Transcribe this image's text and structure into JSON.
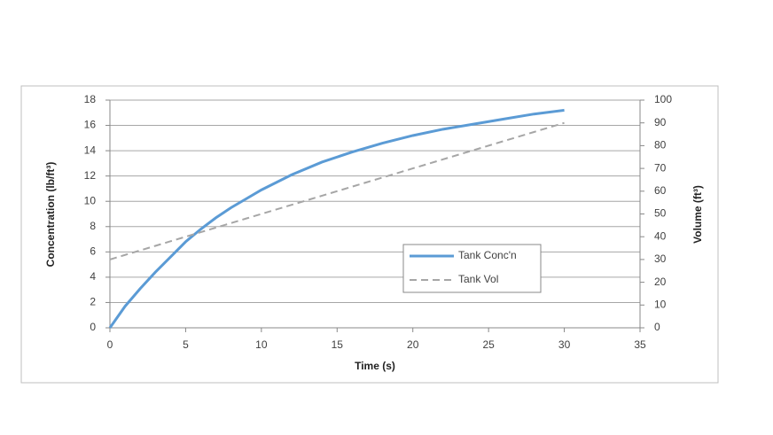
{
  "chart_data": {
    "type": "line",
    "x": [
      0,
      1,
      2,
      3,
      4,
      5,
      6,
      7,
      8,
      9,
      10,
      12,
      14,
      16,
      18,
      20,
      22,
      24,
      26,
      28,
      30
    ],
    "series": [
      {
        "name": "Tank Conc'n",
        "color": "#5b9bd5",
        "dash": false,
        "axis": "y",
        "values": [
          0,
          1.7,
          3.1,
          4.4,
          5.6,
          6.8,
          7.8,
          8.7,
          9.5,
          10.2,
          10.9,
          12.1,
          13.1,
          13.9,
          14.6,
          15.2,
          15.7,
          16.1,
          16.5,
          16.9,
          17.2
        ]
      },
      {
        "name": "Tank Vol",
        "color": "#a6a6a6",
        "dash": true,
        "axis": "y2",
        "values": [
          30,
          32,
          34,
          36,
          38,
          40,
          42,
          44,
          46,
          48,
          50,
          54,
          58,
          62,
          66,
          70,
          74,
          78,
          82,
          86,
          90
        ]
      }
    ],
    "xlabel": "Time (s)",
    "ylabel": "Concentration (lb/ft³)",
    "y2label": "Volume (ft³)",
    "xlim": [
      0,
      35
    ],
    "xticks": [
      0,
      5,
      10,
      15,
      20,
      25,
      30,
      35
    ],
    "ylim": [
      0,
      18
    ],
    "yticks": [
      0,
      2,
      4,
      6,
      8,
      10,
      12,
      14,
      16,
      18
    ],
    "y2lim": [
      0,
      100
    ],
    "y2ticks": [
      0,
      10,
      20,
      30,
      40,
      50,
      60,
      70,
      80,
      90,
      100
    ],
    "grid": true
  }
}
